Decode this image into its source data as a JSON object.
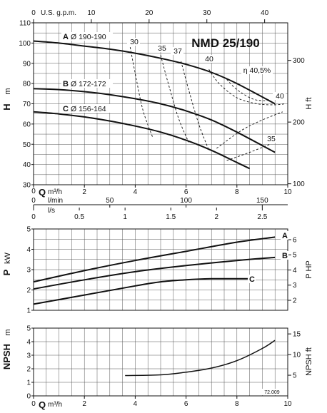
{
  "chart_data": [
    {
      "type": "line",
      "title": "NMD 25/190",
      "code": "72.009",
      "top_axes": {
        "us_gpm": {
          "label": "U.S. g.p.m.",
          "ticks": [
            0,
            10,
            20,
            30,
            40
          ],
          "range": [
            0,
            44
          ]
        },
        "q_m3h": {
          "label": "Q m³/h",
          "ticks": [
            0,
            2,
            4,
            6,
            8,
            10
          ],
          "range": [
            0,
            10
          ]
        },
        "l_min": {
          "label": "l/min",
          "ticks": [
            0,
            50,
            100,
            150
          ],
          "range": [
            0,
            166.7
          ]
        },
        "l_s": {
          "label": "l/s",
          "ticks": [
            "0",
            "0.5",
            "1",
            "1.5",
            "2",
            "2.5"
          ],
          "tick_values": [
            0,
            0.5,
            1,
            1.5,
            2,
            2.5
          ],
          "range": [
            0,
            2.778
          ]
        }
      },
      "y_left": {
        "label": "H m",
        "ticks": [
          30,
          40,
          50,
          60,
          70,
          80,
          90,
          100,
          110
        ],
        "range": [
          30,
          110
        ]
      },
      "y_right": {
        "label": "H ft",
        "ticks": [
          "100",
          "200",
          "300"
        ],
        "tick_values": [
          100,
          200,
          300
        ]
      },
      "series": [
        {
          "name": "A",
          "label": "Ø 190-190",
          "x": [
            0,
            1,
            2,
            3,
            4,
            5,
            6,
            7,
            8,
            9.5
          ],
          "y": [
            101,
            100,
            98.5,
            97,
            95,
            92.5,
            89.5,
            85.5,
            80,
            70
          ]
        },
        {
          "name": "B",
          "label": "Ø 172-172",
          "x": [
            0,
            1,
            2,
            3,
            4,
            5,
            6,
            7,
            8,
            9.5
          ],
          "y": [
            77.5,
            77,
            76,
            74.5,
            72.5,
            70,
            66.5,
            62,
            56,
            46
          ]
        },
        {
          "name": "C",
          "label": "Ø 156-164",
          "x": [
            0,
            1,
            2,
            3,
            4,
            5,
            6,
            7,
            8,
            8.5
          ],
          "y": [
            66,
            65,
            63.5,
            61.5,
            59,
            56,
            52,
            47,
            41,
            38
          ]
        }
      ],
      "efficiency_lines": [
        {
          "label": "30",
          "x": [
            3.8,
            4.0,
            4.3,
            4.7
          ],
          "y": [
            98,
            85,
            67,
            53
          ]
        },
        {
          "label": "35",
          "x": [
            5.0,
            5.3,
            5.7,
            6.1
          ],
          "y": [
            94,
            80,
            63,
            51
          ]
        },
        {
          "label": "37",
          "x": [
            5.8,
            6.1,
            6.5,
            6.9
          ],
          "y": [
            91,
            77,
            60,
            47
          ]
        },
        {
          "label": "40",
          "x": [
            6.9,
            7.3,
            8.0,
            8.8,
            9.5,
            9.9
          ],
          "y": [
            87,
            80,
            73,
            70,
            69.5,
            70
          ]
        },
        {
          "label": "η 40,5%",
          "x": [
            7.6,
            8.0,
            8.6,
            9.1,
            9.3
          ],
          "y": [
            82,
            77,
            72.5,
            71.5,
            72.5
          ]
        },
        {
          "label": "40",
          "x": [
            7.2,
            8.2,
            9.0,
            9.8
          ],
          "y": [
            48,
            57,
            62,
            66
          ]
        },
        {
          "label": "35",
          "x": [
            7.6,
            8.5,
            9.3
          ],
          "y": [
            42,
            46,
            50
          ]
        }
      ]
    },
    {
      "type": "line",
      "y_left": {
        "label": "P kW",
        "ticks": [
          1,
          2,
          3,
          4,
          5
        ],
        "range": [
          1,
          5
        ]
      },
      "y_right": {
        "label": "P HP",
        "ticks": [
          "2",
          "3",
          "4",
          "5",
          "6"
        ],
        "tick_values": [
          2,
          3,
          4,
          5,
          6
        ]
      },
      "x_label": "Q m³/h",
      "series": [
        {
          "name": "A",
          "x": [
            0,
            2,
            4,
            6,
            8,
            9.5
          ],
          "y": [
            2.4,
            2.95,
            3.45,
            3.9,
            4.35,
            4.6
          ]
        },
        {
          "name": "B",
          "x": [
            0,
            2,
            4,
            6,
            8,
            9.5
          ],
          "y": [
            2.05,
            2.5,
            2.9,
            3.2,
            3.45,
            3.6
          ]
        },
        {
          "name": "C",
          "x": [
            0,
            2,
            4,
            5,
            6,
            7,
            8.5
          ],
          "y": [
            1.3,
            1.75,
            2.2,
            2.4,
            2.5,
            2.55,
            2.55
          ]
        }
      ]
    },
    {
      "type": "line",
      "y_left": {
        "label": "NPSH m",
        "ticks": [
          0,
          1,
          2,
          3,
          4,
          5
        ],
        "range": [
          0,
          5
        ]
      },
      "y_right": {
        "label": "NPSH ft",
        "ticks": [
          "5",
          "10",
          "15"
        ],
        "tick_values": [
          5,
          10,
          15
        ]
      },
      "x_label": "Q m³/h",
      "x_ticks": [
        0,
        2,
        4,
        6,
        8,
        10
      ],
      "series": [
        {
          "name": "",
          "x": [
            3.6,
            5,
            6,
            7,
            8,
            9,
            9.5
          ],
          "y": [
            1.5,
            1.55,
            1.75,
            2.05,
            2.6,
            3.5,
            4.1
          ]
        }
      ]
    }
  ]
}
